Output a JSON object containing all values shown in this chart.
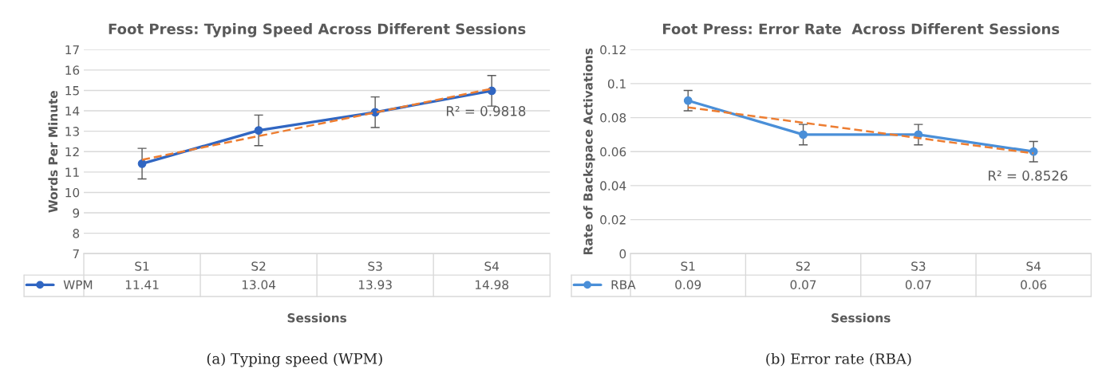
{
  "chart_data": [
    {
      "type": "line",
      "title": "Foot Press: Typing Speed Across Different Sessions",
      "xlabel": "Sessions",
      "ylabel": "Words Per Minute",
      "categories": [
        "S1",
        "S2",
        "S3",
        "S4"
      ],
      "series": [
        {
          "name": "WPM",
          "color": "#3066c2",
          "values": [
            11.41,
            13.04,
            13.93,
            14.98
          ],
          "value_labels": [
            "11.41",
            "13.04",
            "13.93",
            "14.98"
          ],
          "errors": [
            0.75,
            0.75,
            0.75,
            0.75
          ]
        },
        {
          "color": "#ed7d31",
          "values": [
            11.6,
            12.76,
            13.92,
            15.08
          ],
          "marker": "none",
          "line_style": "dashed"
        }
      ],
      "ylim": [
        7,
        17
      ],
      "yticks": [
        7,
        8,
        9,
        10,
        11,
        12,
        13,
        14,
        15,
        16,
        17
      ],
      "grid": "y",
      "marker": "circle",
      "line_style": "solid",
      "legend": "bottom",
      "annotations": [
        "R² = 0.9818",
        "(a) Typing speed (WPM)"
      ]
    },
    {
      "type": "line",
      "title": "Foot Press: Error Rate  Across Different Sessions",
      "xlabel": "Sessions",
      "ylabel": "Rate of Backspace Activations",
      "categories": [
        "S1",
        "S2",
        "S3",
        "S4"
      ],
      "series": [
        {
          "name": "RBA",
          "color": "#4a8fd8",
          "values": [
            0.09,
            0.07,
            0.07,
            0.06
          ],
          "value_labels": [
            "0.09",
            "0.07",
            "0.07",
            "0.06"
          ],
          "errors": [
            0.006,
            0.006,
            0.006,
            0.006
          ]
        },
        {
          "color": "#ed7d31",
          "values": [
            0.086,
            0.077,
            0.068,
            0.059
          ],
          "marker": "none",
          "line_style": "dashed"
        }
      ],
      "ylim": [
        0,
        0.12
      ],
      "yticks": [
        0,
        0.02,
        0.04,
        0.06,
        0.08,
        0.1,
        0.12
      ],
      "grid": "y",
      "marker": "circle",
      "line_style": "solid",
      "legend": "bottom",
      "annotations": [
        "R² = 0.8526",
        "(b) Error rate (RBA)"
      ]
    }
  ]
}
